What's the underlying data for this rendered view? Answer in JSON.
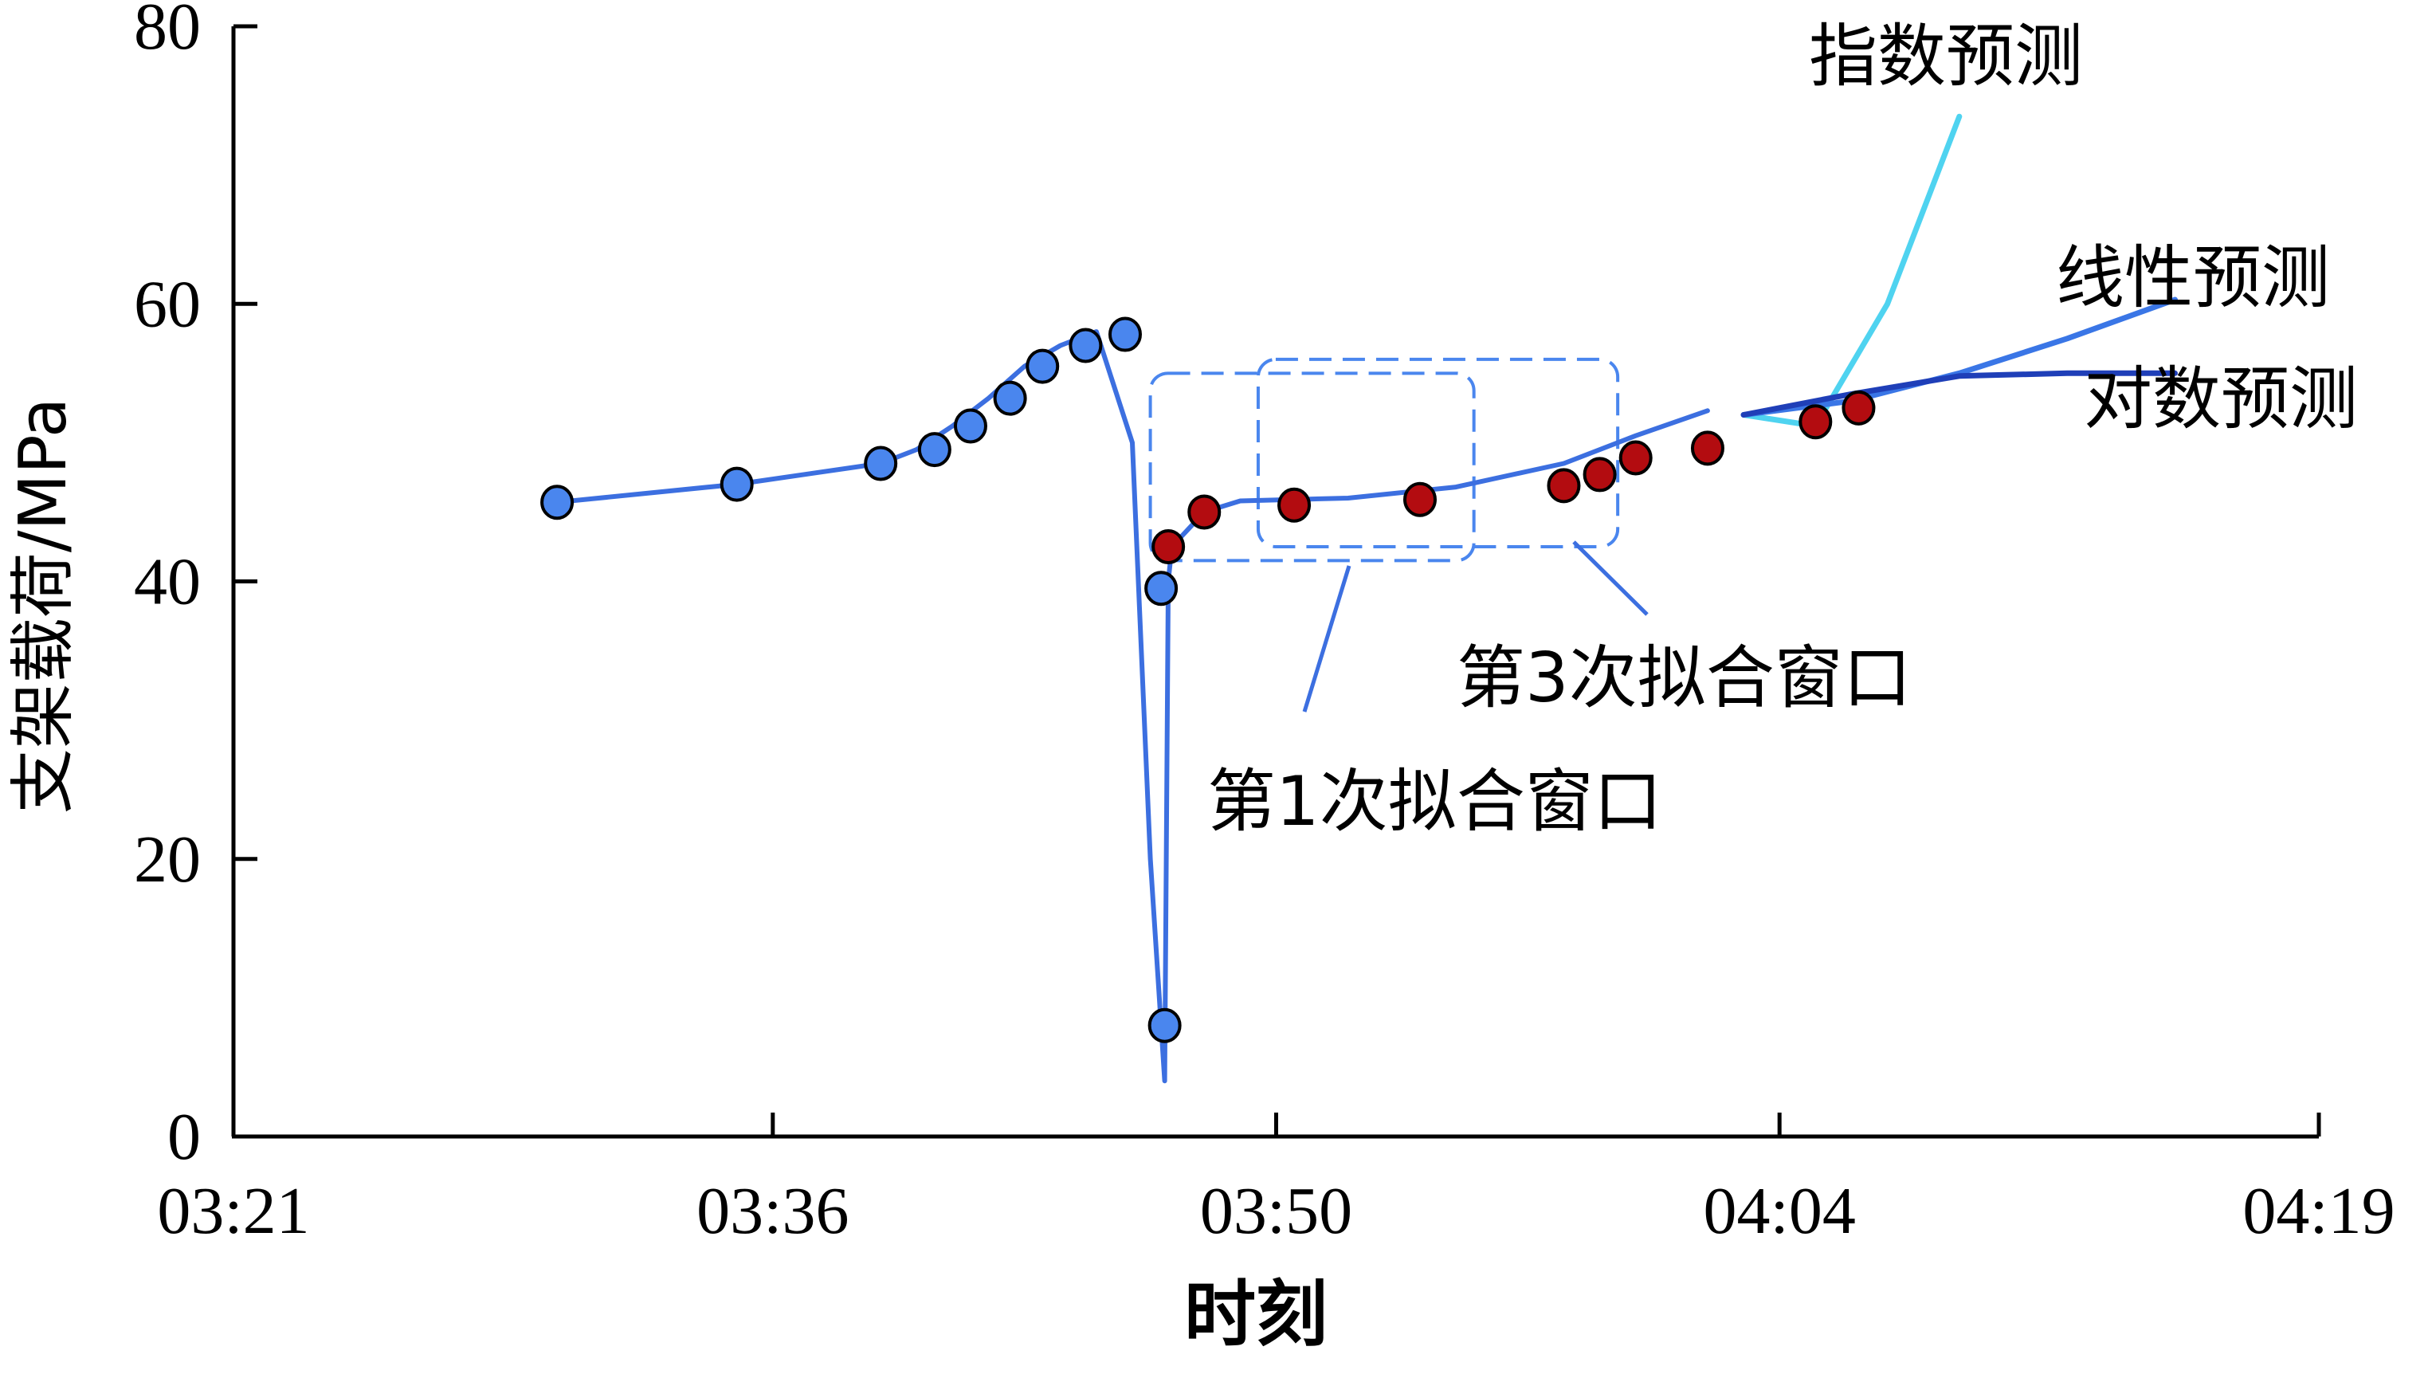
{
  "chart_data": {
    "type": "line",
    "title": "",
    "xlabel": "时刻",
    "ylabel": "支架载荷/MPa",
    "x_ticks": [
      "03:21",
      "03:36",
      "03:50",
      "04:04",
      "04:19"
    ],
    "y_ticks": [
      0,
      20,
      40,
      60,
      80
    ],
    "xlim_minutes": [
      0,
      58
    ],
    "ylim": [
      0,
      80
    ],
    "grid": false,
    "colors": {
      "measured_line": "#3c6fe0",
      "history_point": "#4a86ee",
      "window_point": "#b30c10",
      "exp_forecast": "#4fd3f0",
      "linear_forecast": "#3a76e6",
      "log_forecast": "#1f3fb8",
      "window_box": "#4a86ee"
    },
    "series": [
      {
        "name": "",
        "role": "measured-curve",
        "x": [
          "03:30",
          "03:35",
          "03:39",
          "03:40",
          "03:41",
          "03:42",
          "03:43",
          "03:44",
          "03:45",
          "03:46",
          "03:46.5",
          "03:46.9",
          "03:47",
          "03:47.1",
          "03:48",
          "03:49",
          "03:52",
          "03:55",
          "03:58",
          "04:00",
          "04:02"
        ],
        "y": [
          45.7,
          47.0,
          48.5,
          49.5,
          51.2,
          53.2,
          55.5,
          57.0,
          58.0,
          50.0,
          20.0,
          4.0,
          40.0,
          42.5,
          45.0,
          45.8,
          46.0,
          46.8,
          48.5,
          50.5,
          52.3
        ]
      },
      {
        "name": "",
        "role": "history-points",
        "x": [
          "03:30",
          "03:35",
          "03:39",
          "03:40.5",
          "03:41.5",
          "03:42.6",
          "03:43.5",
          "03:44.7",
          "03:45.8",
          "03:46.8",
          "03:46.9"
        ],
        "y": [
          45.7,
          47.0,
          48.5,
          49.5,
          51.2,
          53.2,
          55.5,
          57.0,
          57.8,
          39.5,
          8.0
        ]
      },
      {
        "name": "",
        "role": "window-points",
        "x": [
          "03:47",
          "03:48",
          "03:50.5",
          "03:54",
          "03:58",
          "03:59",
          "04:00",
          "04:02",
          "04:05",
          "04:06.2"
        ],
        "y": [
          42.5,
          45.0,
          45.5,
          45.9,
          46.9,
          47.7,
          48.9,
          49.6,
          51.5,
          52.5
        ]
      },
      {
        "name": "指数预测",
        "x": [
          "04:03",
          "04:05",
          "04:07",
          "04:09"
        ],
        "y": [
          52.0,
          51.2,
          60.0,
          73.5
        ]
      },
      {
        "name": "线性预测",
        "x": [
          "04:03",
          "04:06",
          "04:09",
          "04:12",
          "04:15"
        ],
        "y": [
          52.0,
          53.0,
          55.0,
          57.5,
          60.3
        ]
      },
      {
        "name": "对数预测",
        "x": [
          "04:03",
          "04:06",
          "04:09",
          "04:12",
          "04:15"
        ],
        "y": [
          52.0,
          53.5,
          54.8,
          55.0,
          55.0
        ]
      }
    ],
    "fit_windows": [
      {
        "label": "第1次拟合窗口",
        "x_range": [
          "03:46.5",
          "03:55.5"
        ],
        "y_range": [
          41.5,
          55.0
        ]
      },
      {
        "label": "第3次拟合窗口",
        "x_range": [
          "03:49.5",
          "03:59.5"
        ],
        "y_range": [
          42.5,
          56.0
        ]
      }
    ]
  }
}
